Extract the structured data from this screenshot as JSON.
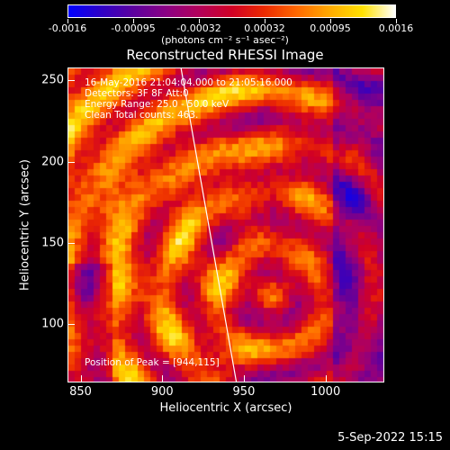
{
  "colorbar": {
    "ticks": [
      "-0.0016",
      "-0.00095",
      "-0.00032",
      "0.00032",
      "0.00095",
      "0.0016"
    ],
    "units": "(photons cm⁻² s⁻¹ asec⁻²)",
    "colormap": [
      "#0000ff",
      "#2e00c6",
      "#5c009e",
      "#8b0083",
      "#b3005a",
      "#d10025",
      "#ec2a00",
      "#ff6900",
      "#ffaa00",
      "#ffe100",
      "#ffffff"
    ]
  },
  "title": "Reconstructed RHESSI Image",
  "annotations": {
    "time_range": "16-May-2016 21:04:04.000 to 21:05:16.000",
    "detectors": "Detectors: 3F 8F  Att:0",
    "energy": "Energy Range: 25.0 - 50.0 keV",
    "clean": "Clean    Total counts: 463.",
    "peak": "Position of Peak = [944,115]"
  },
  "axes": {
    "x_label": "Heliocentric X (arcsec)",
    "y_label": "Heliocentric Y (arcsec)",
    "x_ticks": [
      "850",
      "900",
      "950",
      "1000"
    ],
    "y_ticks": [
      "250",
      "200",
      "150",
      "100"
    ],
    "x_range": [
      842,
      1036
    ],
    "y_range": [
      64,
      258
    ]
  },
  "limb": {
    "x_at_top": 911,
    "x_at_bottom": 945,
    "color": "#ffffff"
  },
  "timestamp": "5-Sep-2022 15:15"
}
